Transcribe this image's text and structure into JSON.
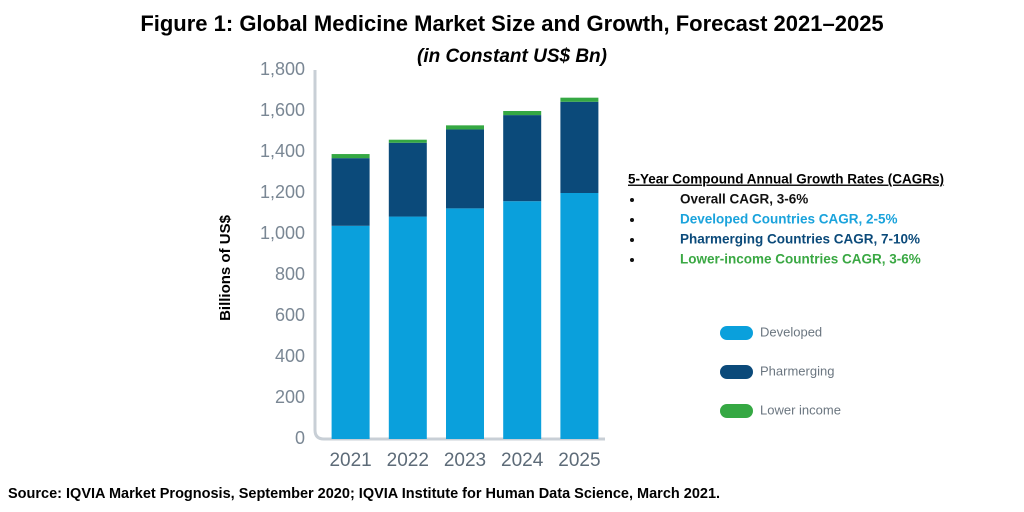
{
  "chart_data": {
    "type": "stacked_bar",
    "title": "Figure 1: Global Medicine Market Size and Growth, Forecast 2021–2025",
    "subtitle": "(in Constant US$ Bn)",
    "y_label": "Billions of US$",
    "categories": [
      "2021",
      "2022",
      "2023",
      "2024",
      "2025"
    ],
    "series": [
      {
        "name": "Developed",
        "color": "#0aa0dc",
        "values": [
          1040,
          1085,
          1125,
          1160,
          1200
        ]
      },
      {
        "name": "Pharmerging",
        "color": "#0b4a7a",
        "values": [
          330,
          360,
          385,
          420,
          445
        ]
      },
      {
        "name": "Lower income",
        "color": "#35a843",
        "values": [
          20,
          15,
          20,
          20,
          20
        ]
      }
    ],
    "ylim": [
      0,
      1800
    ],
    "yticks": [
      0,
      200,
      400,
      600,
      800,
      {
        "value": 1000,
        "label": "1,000"
      },
      {
        "value": 1200,
        "label": "1,200"
      },
      {
        "value": 1400,
        "label": "1,400"
      },
      {
        "value": 1600,
        "label": "1,600"
      },
      {
        "value": 1800,
        "label": "1,800"
      }
    ],
    "grid": false,
    "annotation": {
      "title": "5-Year Compound Annual Growth Rates (CAGRs)",
      "items": [
        {
          "text": "Overall CAGR, 3-6%",
          "color": "#111111"
        },
        {
          "text": "Developed Countries CAGR, 2-5%",
          "color": "#1aa3dc"
        },
        {
          "text": "Pharmerging Countries CAGR, 7-10%",
          "color": "#0b4a7a"
        },
        {
          "text": "Lower-income Countries CAGR, 3-6%",
          "color": "#3aa843"
        }
      ]
    },
    "source": "Source: IQVIA Market Prognosis, September 2020; IQVIA Institute for Human Data Science, March 2021."
  }
}
